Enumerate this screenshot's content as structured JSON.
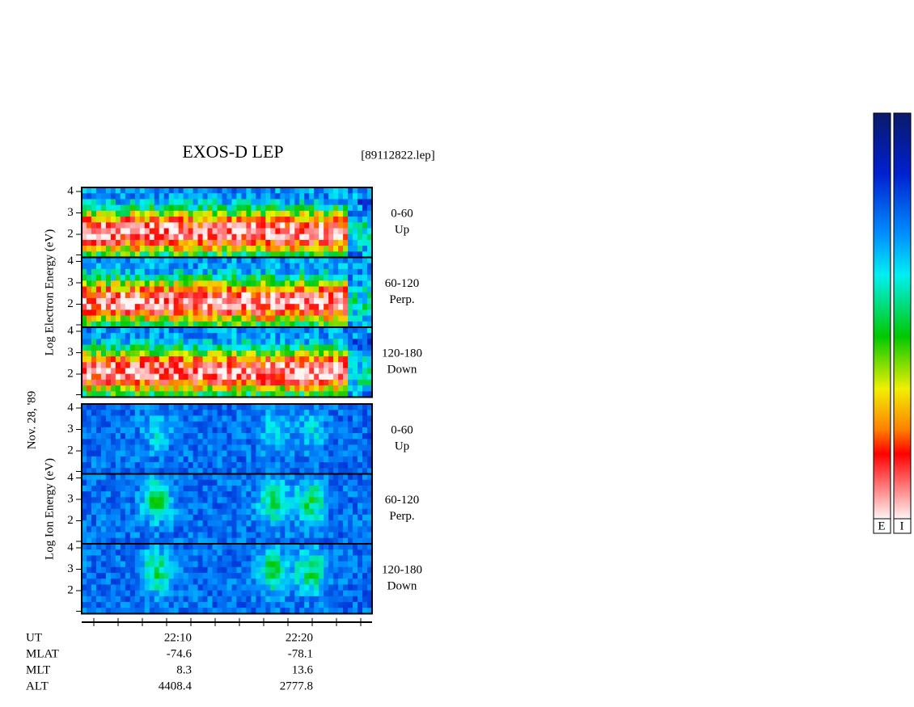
{
  "title": "EXOS-D LEP",
  "file": "[89112822.lep]",
  "date": "Nov. 28, '89",
  "groups": [
    {
      "axis_label": "Log  Electron  Energy  (eV)",
      "panels": [
        {
          "pitch": "0-60",
          "direction": "Up",
          "ticks": [
            "4",
            "3",
            "2"
          ]
        },
        {
          "pitch": "60-120",
          "direction": "Perp.",
          "ticks": [
            "4",
            "3",
            "2"
          ]
        },
        {
          "pitch": "120-180",
          "direction": "Down",
          "ticks": [
            "4",
            "3",
            "2"
          ]
        }
      ]
    },
    {
      "axis_label": "Log  Ion  Energy  (eV)",
      "panels": [
        {
          "pitch": "0-60",
          "direction": "Up",
          "ticks": [
            "4",
            "3",
            "2"
          ]
        },
        {
          "pitch": "60-120",
          "direction": "Perp.",
          "ticks": [
            "4",
            "3",
            "2"
          ]
        },
        {
          "pitch": "120-180",
          "direction": "Down",
          "ticks": [
            "4",
            "3",
            "2"
          ]
        }
      ]
    }
  ],
  "time_axis": {
    "rows": [
      {
        "label": "UT",
        "values": [
          "22:10",
          "22:20"
        ]
      },
      {
        "label": "MLAT",
        "values": [
          "-74.6",
          "-78.1"
        ]
      },
      {
        "label": "MLT",
        "values": [
          "8.3",
          "13.6"
        ]
      },
      {
        "label": "ALT",
        "values": [
          "4408.4",
          "2777.8"
        ]
      }
    ]
  },
  "colorbars": [
    "E",
    "I"
  ]
}
